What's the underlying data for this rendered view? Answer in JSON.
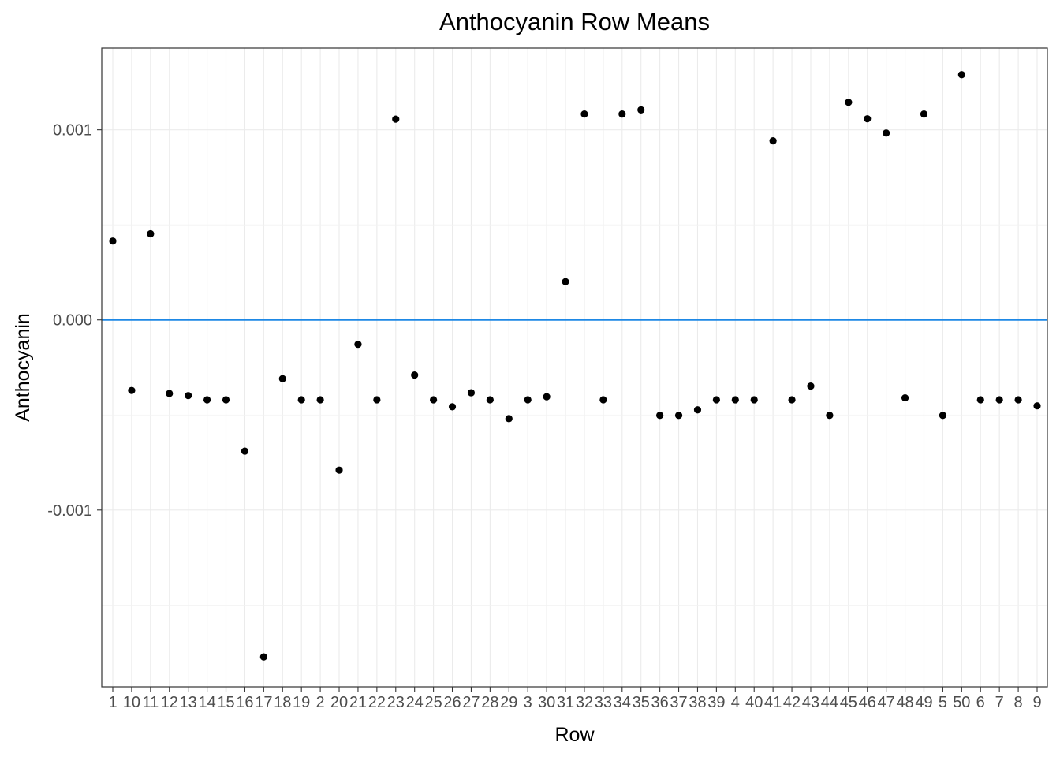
{
  "chart_data": {
    "type": "scatter",
    "title": "Anthocyanin Row Means",
    "xlabel": "Row",
    "ylabel": "Anthocyanin",
    "ylim": [
      -0.00193,
      0.00143
    ],
    "yticks": [
      -0.001,
      0.0,
      0.001
    ],
    "ytick_labels": [
      "-0.001",
      "0.000",
      "0.001"
    ],
    "grid": true,
    "reference_line": {
      "y": 0.0,
      "color": "#1e88e5"
    },
    "point_color": "#000000",
    "categories": [
      "1",
      "10",
      "11",
      "12",
      "13",
      "14",
      "15",
      "16",
      "17",
      "18",
      "19",
      "2",
      "20",
      "21",
      "22",
      "23",
      "24",
      "25",
      "26",
      "27",
      "28",
      "29",
      "3",
      "30",
      "31",
      "32",
      "33",
      "34",
      "35",
      "36",
      "37",
      "38",
      "39",
      "4",
      "40",
      "41",
      "42",
      "43",
      "44",
      "45",
      "46",
      "47",
      "48",
      "49",
      "5",
      "50",
      "6",
      "7",
      "8",
      "9"
    ],
    "values": [
      0.000415,
      -0.000371,
      0.000453,
      -0.000387,
      -0.000398,
      -0.00042,
      -0.00042,
      -0.00069,
      -0.001773,
      -0.000309,
      -0.00042,
      -0.00042,
      -0.00079,
      -0.000128,
      -0.00042,
      0.001056,
      -0.00029,
      -0.00042,
      -0.000457,
      -0.000383,
      -0.00042,
      -0.000519,
      -0.00042,
      -0.000404,
      0.000201,
      0.001083,
      -0.00042,
      0.001083,
      0.001105,
      -0.000502,
      -0.000502,
      -0.000473,
      -0.00042,
      -0.00042,
      -0.00042,
      0.000942,
      -0.00042,
      -0.000348,
      -0.000502,
      0.001145,
      0.001058,
      0.000983,
      -0.00041,
      0.001083,
      -0.000502,
      0.00129,
      -0.00042,
      -0.00042,
      -0.00042,
      -0.000452
    ]
  }
}
